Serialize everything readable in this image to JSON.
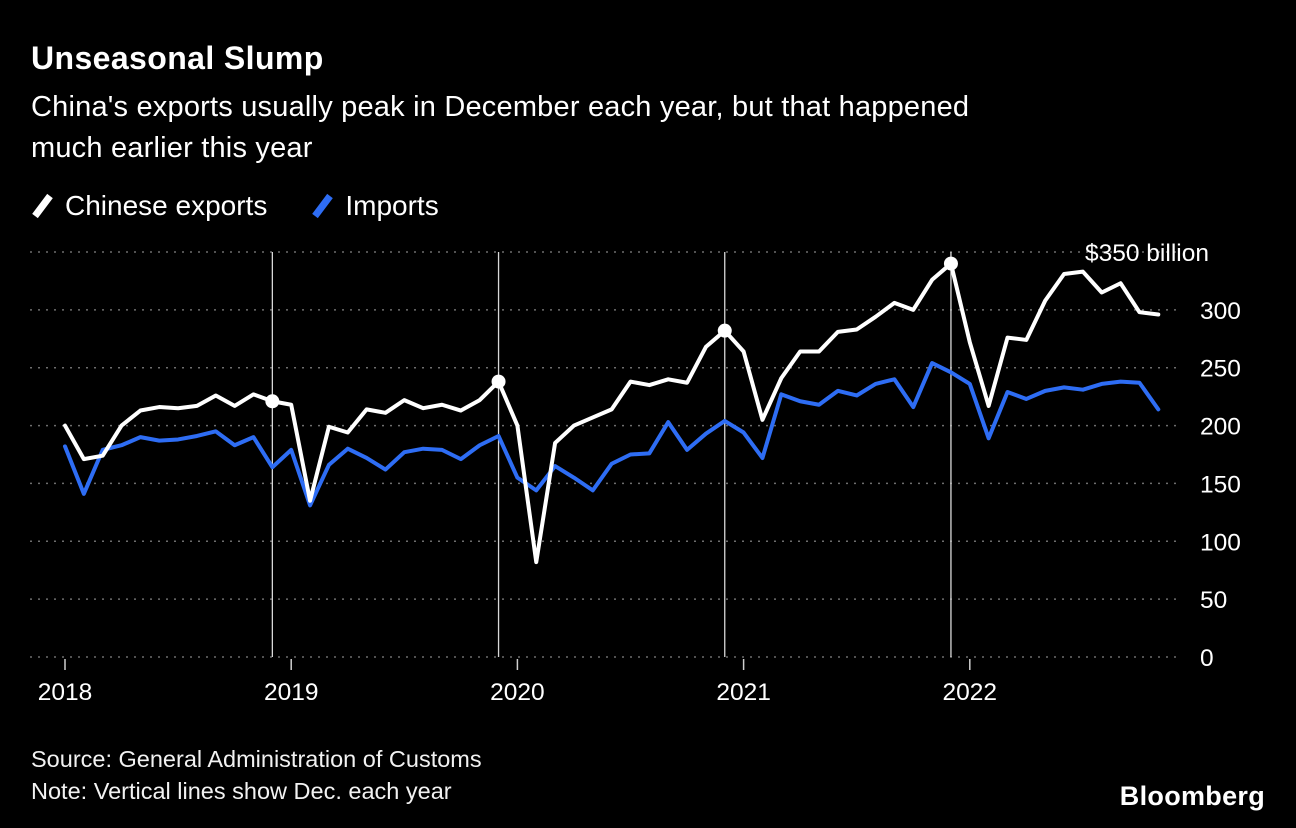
{
  "header": {
    "title": "Unseasonal Slump",
    "subtitle_line1": "China's exports usually peak in December each year, but that happened",
    "subtitle_line2": "much earlier this year"
  },
  "legend": {
    "items": [
      {
        "label": "Chinese exports",
        "color": "#ffffff"
      },
      {
        "label": "Imports",
        "color": "#2e6df4"
      }
    ]
  },
  "footer": {
    "source": "Source: General Administration of Customs",
    "note": "Note: Vertical lines show Dec. each year",
    "brand": "Bloomberg"
  },
  "chart_data": {
    "type": "line",
    "title": "Unseasonal Slump",
    "subtitle": "China's exports usually peak in December each year, but that happened much earlier this year",
    "unit": "$ billion",
    "x_start": "2018-01",
    "frequency": "monthly",
    "grid": "dotted-horizontal",
    "legend_position": "top-left",
    "x_axis": {
      "ticks": [
        {
          "index": 0,
          "label": "2018"
        },
        {
          "index": 12,
          "label": "2019"
        },
        {
          "index": 24,
          "label": "2020"
        },
        {
          "index": 36,
          "label": "2021"
        },
        {
          "index": 48,
          "label": "2022"
        }
      ]
    },
    "y_axis": {
      "ticks": [
        350,
        300,
        250,
        200,
        150,
        100,
        50,
        0
      ],
      "top_label": "$350 billion",
      "ylim": [
        0,
        350
      ]
    },
    "december_marker_indices": [
      11,
      23,
      35,
      47
    ],
    "december_export_values": [
      221,
      238,
      282,
      340
    ],
    "series": [
      {
        "name": "Chinese exports",
        "color": "#ffffff",
        "values": [
          200,
          171,
          174,
          200,
          213,
          216,
          215,
          217,
          226,
          217,
          227,
          221,
          218,
          135,
          199,
          194,
          214,
          211,
          222,
          215,
          218,
          213,
          222,
          238,
          200,
          82,
          185,
          200,
          207,
          214,
          238,
          235,
          240,
          237,
          268,
          282,
          264,
          205,
          241,
          264,
          264,
          281,
          283,
          294,
          306,
          300,
          326,
          340,
          272,
          217,
          276,
          274,
          308,
          331,
          333,
          315,
          323,
          298,
          296
        ]
      },
      {
        "name": "Imports",
        "color": "#2e6df4",
        "values": [
          182,
          141,
          179,
          183,
          190,
          187,
          188,
          191,
          195,
          183,
          190,
          164,
          179,
          131,
          166,
          180,
          172,
          162,
          177,
          180,
          179,
          171,
          183,
          191,
          155,
          144,
          165,
          155,
          144,
          167,
          175,
          176,
          203,
          179,
          193,
          204,
          194,
          172,
          227,
          221,
          218,
          230,
          226,
          236,
          240,
          216,
          254,
          246,
          236,
          189,
          229,
          223,
          230,
          233,
          231,
          236,
          238,
          237,
          214
        ]
      }
    ]
  }
}
